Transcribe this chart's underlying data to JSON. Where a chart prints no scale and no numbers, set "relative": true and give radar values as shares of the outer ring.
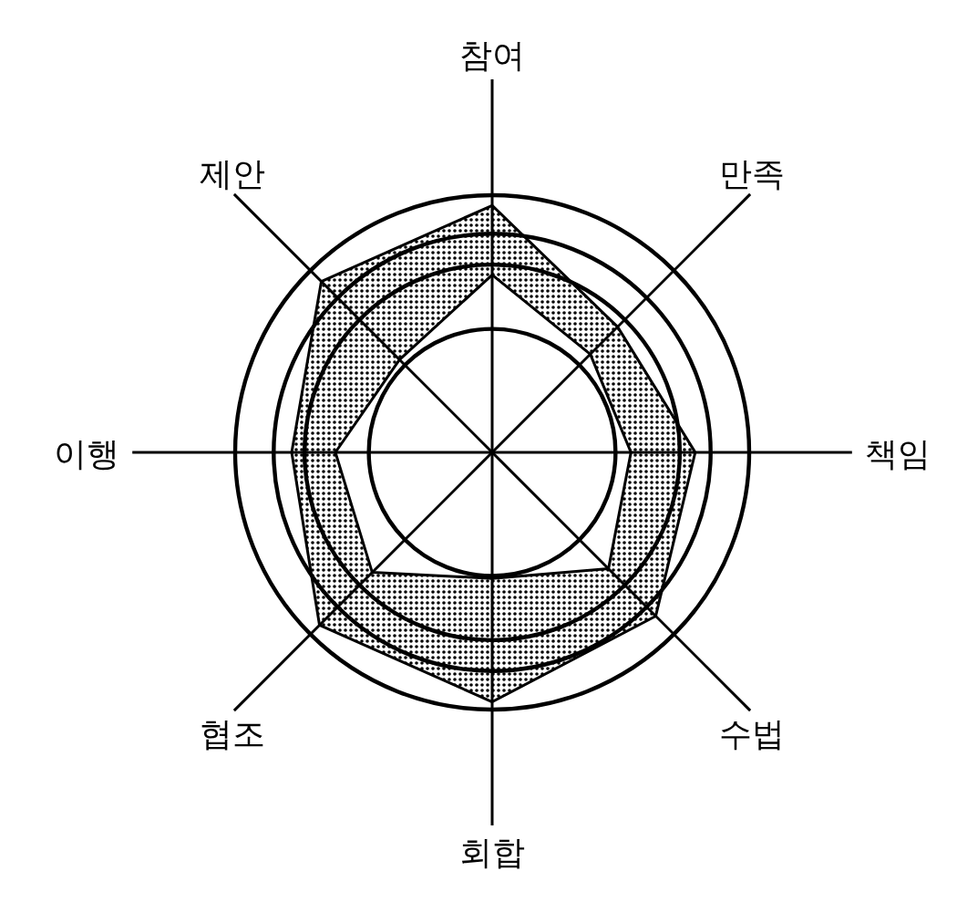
{
  "chart_data": {
    "type": "radar",
    "relative": true,
    "categories": [
      "참여",
      "만족",
      "책임",
      "수법",
      "회합",
      "협조",
      "이행",
      "제안"
    ],
    "series": [
      {
        "color": "#000000",
        "values": [
          0.96,
          0.69,
          0.79,
          0.9,
          0.97,
          0.95,
          0.78,
          0.94
        ]
      },
      {
        "color": "#000000",
        "values": [
          0.69,
          0.54,
          0.54,
          0.64,
          0.49,
          0.66,
          0.61,
          0.51
        ]
      }
    ]
  }
}
